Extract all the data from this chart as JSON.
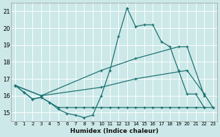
{
  "xlabel": "Humidex (Indice chaleur)",
  "bg_color": "#cce8e8",
  "grid_color": "#ffffff",
  "line_color": "#1a7070",
  "xlim_min": -0.5,
  "xlim_max": 23.5,
  "ylim_min": 14.5,
  "ylim_max": 21.5,
  "yticks": [
    15,
    16,
    17,
    18,
    19,
    20,
    21
  ],
  "xticks": [
    0,
    1,
    2,
    3,
    4,
    5,
    6,
    7,
    8,
    9,
    10,
    11,
    12,
    13,
    14,
    15,
    16,
    17,
    18,
    19,
    20,
    21,
    22,
    23
  ],
  "series": [
    {
      "x": [
        0,
        1,
        2,
        3,
        4,
        5,
        6,
        7,
        8,
        9,
        10,
        11,
        12,
        13,
        14,
        15,
        16,
        17,
        18,
        19,
        20,
        21,
        22
      ],
      "y": [
        16.6,
        16.2,
        15.8,
        15.9,
        15.6,
        15.2,
        14.95,
        14.85,
        14.7,
        14.85,
        16.0,
        17.5,
        19.5,
        21.2,
        20.1,
        20.2,
        20.2,
        19.2,
        18.9,
        17.5,
        16.1,
        16.1,
        15.3
      ]
    },
    {
      "x": [
        0,
        1,
        2,
        3,
        4,
        5,
        6,
        7,
        8,
        9,
        10,
        11,
        12,
        13,
        14,
        15,
        16,
        17,
        18,
        19,
        20,
        21,
        22,
        23
      ],
      "y": [
        16.6,
        16.2,
        15.8,
        15.9,
        15.6,
        15.3,
        15.3,
        15.3,
        15.3,
        15.3,
        15.3,
        15.3,
        15.3,
        15.3,
        15.3,
        15.3,
        15.3,
        15.3,
        15.3,
        15.3,
        15.3,
        15.3,
        15.3,
        15.3
      ]
    },
    {
      "x": [
        0,
        3,
        10,
        14,
        19,
        20,
        22
      ],
      "y": [
        16.6,
        16.0,
        17.5,
        18.2,
        18.9,
        18.9,
        16.0
      ]
    },
    {
      "x": [
        0,
        3,
        10,
        14,
        20,
        22,
        23
      ],
      "y": [
        16.6,
        16.0,
        16.5,
        17.0,
        17.5,
        16.1,
        15.3
      ]
    }
  ]
}
